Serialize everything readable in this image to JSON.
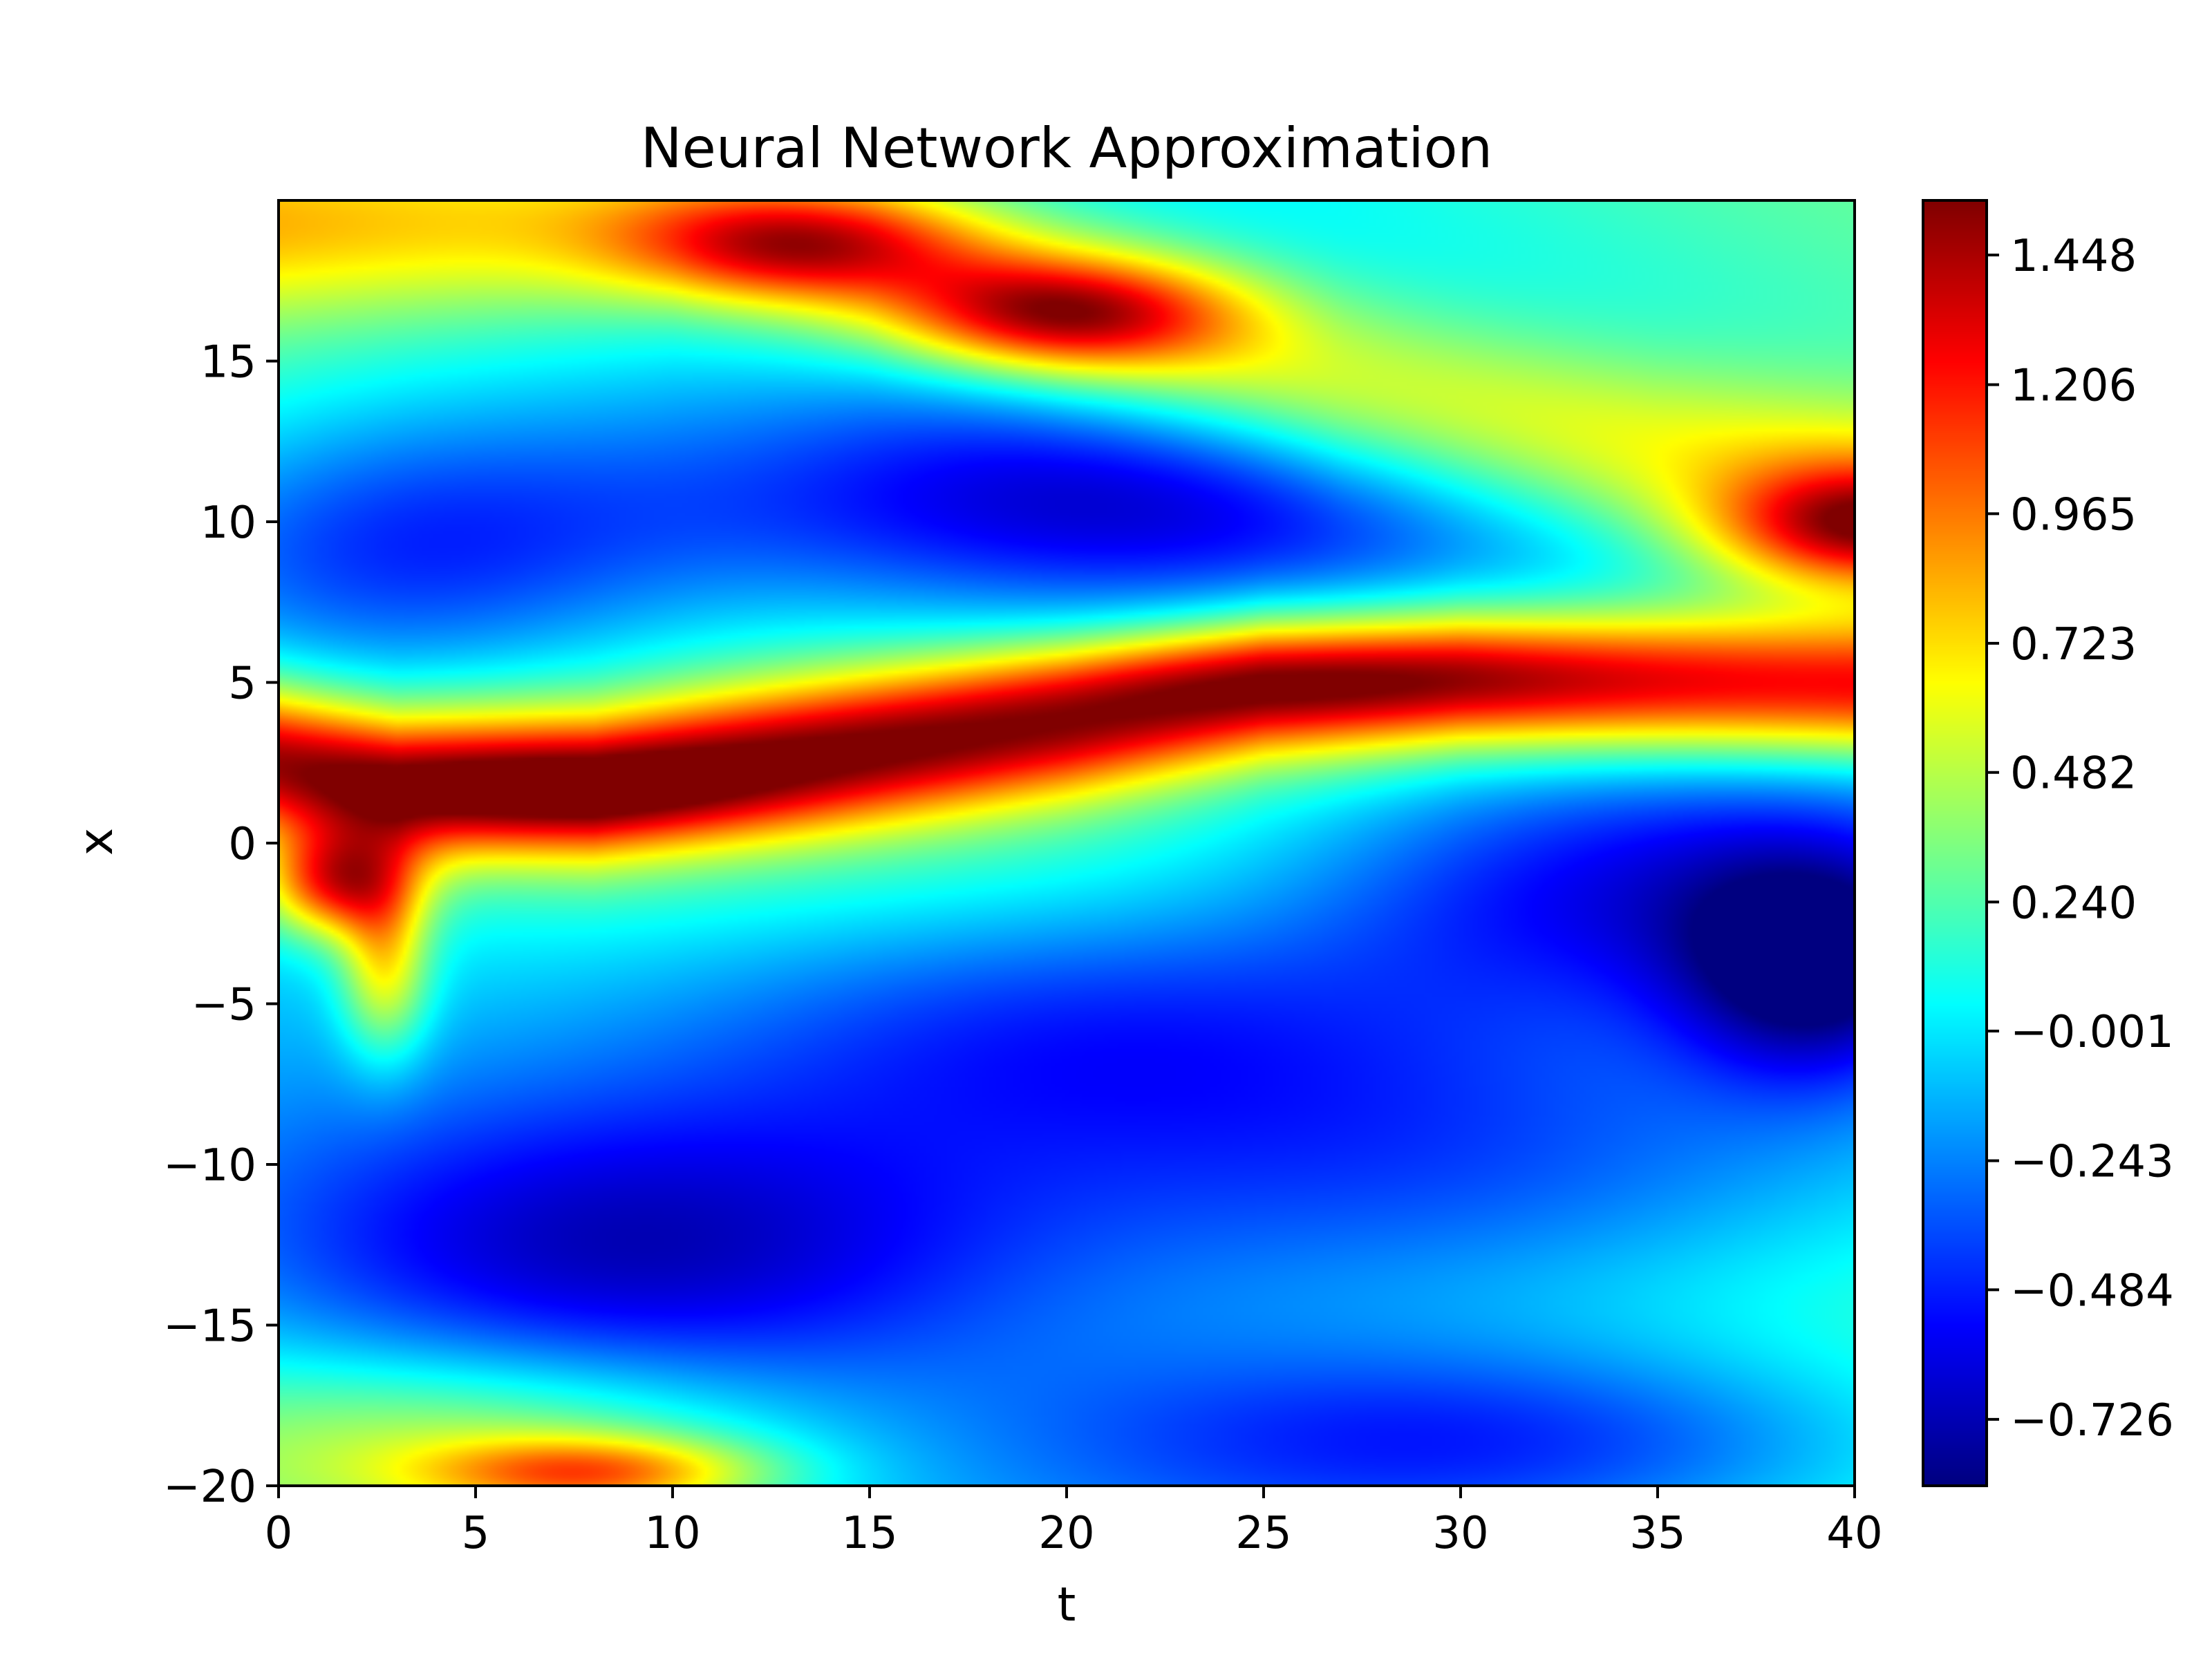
{
  "chart_data": {
    "type": "heatmap",
    "title": "Neural Network Approximation",
    "xlabel": "t",
    "ylabel": "x",
    "xlim": [
      0,
      40
    ],
    "ylim": [
      -20,
      20
    ],
    "x_ticks": [
      0,
      5,
      10,
      15,
      20,
      25,
      30,
      35,
      40
    ],
    "x_tick_labels": [
      "0",
      "5",
      "10",
      "15",
      "20",
      "25",
      "30",
      "35",
      "40"
    ],
    "y_ticks": [
      -20,
      -15,
      -10,
      -5,
      0,
      5,
      10,
      15
    ],
    "y_tick_labels": [
      "−20",
      "−15",
      "−10",
      "−5",
      "0",
      "5",
      "10",
      "15"
    ],
    "colormap": "jet",
    "colorbar": {
      "vmin": -0.85,
      "vmax": 1.55,
      "ticks": [
        -0.726,
        -0.484,
        -0.243,
        -0.001,
        0.24,
        0.482,
        0.723,
        0.965,
        1.206,
        1.448
      ],
      "tick_labels": [
        "−0.726",
        "−0.484",
        "−0.243",
        "−0.001",
        "0.240",
        "0.482",
        "0.723",
        "0.965",
        "1.206",
        "1.448"
      ]
    },
    "field_features": [
      {
        "feature": "ridge",
        "path": [
          [
            0,
            2.5
          ],
          [
            3,
            1.8
          ],
          [
            8,
            1.8
          ],
          [
            14,
            2.8
          ],
          [
            20,
            3.8
          ],
          [
            25,
            4.8
          ],
          [
            30,
            5.1
          ],
          [
            36,
            5.0
          ],
          [
            40,
            4.9
          ]
        ],
        "width": 1.6,
        "value": 1.35
      },
      {
        "feature": "peak",
        "t": 7,
        "x": 1.6,
        "width_t": 4,
        "width_x": 1.0,
        "value": 0.3
      },
      {
        "feature": "peak",
        "t": 27,
        "x": 5.1,
        "width_t": 5,
        "width_x": 1.0,
        "value": 0.3
      },
      {
        "feature": "peak",
        "t": 1.5,
        "x": -1.2,
        "width_t": 1.3,
        "width_x": 1.2,
        "value": 1.1
      },
      {
        "feature": "peak",
        "t": 2.7,
        "x": -3.8,
        "width_t": 0.8,
        "width_x": 2.0,
        "value": 0.7
      },
      {
        "feature": "peak",
        "t": 40,
        "x": 9.8,
        "width_t": 2.5,
        "width_x": 1.3,
        "value": 1.0
      },
      {
        "feature": "ridge",
        "path": [
          [
            10,
            19.5
          ],
          [
            15,
            18.5
          ],
          [
            20,
            16.5
          ],
          [
            27,
            14
          ],
          [
            35,
            12
          ],
          [
            40,
            11
          ]
        ],
        "width": 2.2,
        "value": 0.75
      },
      {
        "feature": "peak",
        "t": 20,
        "x": 16.5,
        "width_t": 3,
        "width_x": 1.2,
        "value": 0.95
      },
      {
        "feature": "peak",
        "t": 13,
        "x": 18.6,
        "width_t": 3,
        "width_x": 1.2,
        "value": 0.85
      },
      {
        "feature": "peak",
        "t": 5,
        "x": -18.6,
        "width_t": 6,
        "width_x": 2.0,
        "value": 0.5
      },
      {
        "feature": "peak",
        "t": 8,
        "x": -19.6,
        "width_t": 3,
        "width_x": 0.8,
        "value": 0.8
      },
      {
        "feature": "trough",
        "t": 3,
        "x": 9,
        "width_t": 5.5,
        "width_x": 3.2,
        "value": -0.7
      },
      {
        "feature": "trough",
        "t": 20,
        "x": 10.5,
        "width_t": 8,
        "width_x": 2.6,
        "value": -0.65
      },
      {
        "feature": "trough",
        "t": 9,
        "x": -12.5,
        "width_t": 7,
        "width_x": 3.2,
        "value": -0.6
      },
      {
        "feature": "trough",
        "t": 20,
        "x": -5.5,
        "width_t": 8,
        "width_x": 3.0,
        "value": -0.6
      },
      {
        "feature": "trough",
        "t": 30,
        "x": -10,
        "width_t": 9,
        "width_x": 3.5,
        "value": -0.6
      },
      {
        "feature": "trough",
        "t": 34,
        "x": -1.5,
        "width_t": 6,
        "width_x": 2.8,
        "value": -0.6
      },
      {
        "feature": "trough",
        "t": 39,
        "x": -4,
        "width_t": 2.5,
        "width_x": 2.5,
        "value": -0.8
      },
      {
        "feature": "trough",
        "t": 31,
        "x": -18.5,
        "width_t": 8,
        "width_x": 2.2,
        "value": -0.55
      }
    ]
  }
}
